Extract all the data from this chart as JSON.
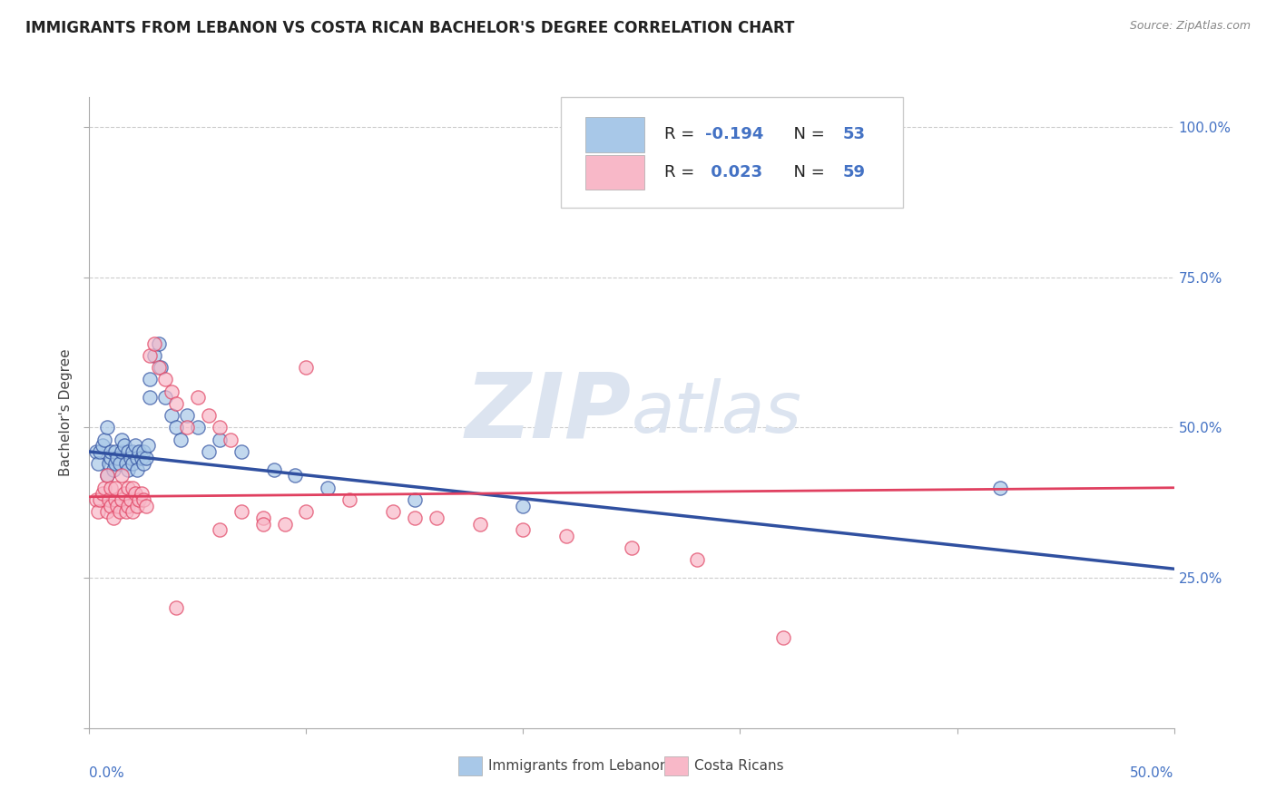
{
  "title": "IMMIGRANTS FROM LEBANON VS COSTA RICAN BACHELOR'S DEGREE CORRELATION CHART",
  "source": "Source: ZipAtlas.com",
  "ylabel": "Bachelor's Degree",
  "right_yticks": [
    "100.0%",
    "75.0%",
    "50.0%",
    "25.0%"
  ],
  "right_ytick_vals": [
    1.0,
    0.75,
    0.5,
    0.25
  ],
  "legend_label1_r": "R = -0.194",
  "legend_label1_n": "N = 53",
  "legend_label2_r": "R =  0.023",
  "legend_label2_n": "N = 59",
  "legend_box_color1": "#a8c8e8",
  "legend_box_color2": "#f8b8c8",
  "color_blue": "#a8c8e8",
  "color_pink": "#f8b8c8",
  "line_color_blue": "#3050a0",
  "line_color_pink": "#e04060",
  "watermark_zip": "ZIP",
  "watermark_atlas": "atlas",
  "watermark_color": "#dce4f0",
  "xlim": [
    0.0,
    0.5
  ],
  "ylim": [
    0.0,
    1.05
  ],
  "blue_scatter_x": [
    0.003,
    0.004,
    0.005,
    0.006,
    0.007,
    0.008,
    0.008,
    0.009,
    0.01,
    0.01,
    0.011,
    0.012,
    0.012,
    0.013,
    0.014,
    0.015,
    0.015,
    0.016,
    0.017,
    0.018,
    0.018,
    0.019,
    0.02,
    0.02,
    0.021,
    0.022,
    0.022,
    0.023,
    0.024,
    0.025,
    0.025,
    0.026,
    0.027,
    0.028,
    0.028,
    0.03,
    0.032,
    0.033,
    0.035,
    0.038,
    0.04,
    0.042,
    0.045,
    0.05,
    0.055,
    0.06,
    0.07,
    0.085,
    0.095,
    0.11,
    0.15,
    0.2,
    0.42
  ],
  "blue_scatter_y": [
    0.46,
    0.44,
    0.46,
    0.47,
    0.48,
    0.42,
    0.5,
    0.44,
    0.45,
    0.46,
    0.43,
    0.44,
    0.46,
    0.45,
    0.44,
    0.46,
    0.48,
    0.47,
    0.44,
    0.43,
    0.46,
    0.45,
    0.44,
    0.46,
    0.47,
    0.45,
    0.43,
    0.46,
    0.45,
    0.44,
    0.46,
    0.45,
    0.47,
    0.55,
    0.58,
    0.62,
    0.64,
    0.6,
    0.55,
    0.52,
    0.5,
    0.48,
    0.52,
    0.5,
    0.46,
    0.48,
    0.46,
    0.43,
    0.42,
    0.4,
    0.38,
    0.37,
    0.4
  ],
  "pink_scatter_x": [
    0.003,
    0.004,
    0.005,
    0.006,
    0.007,
    0.008,
    0.008,
    0.009,
    0.01,
    0.01,
    0.011,
    0.012,
    0.012,
    0.013,
    0.014,
    0.015,
    0.015,
    0.016,
    0.017,
    0.018,
    0.018,
    0.019,
    0.02,
    0.02,
    0.021,
    0.022,
    0.023,
    0.024,
    0.025,
    0.026,
    0.028,
    0.03,
    0.032,
    0.035,
    0.038,
    0.04,
    0.045,
    0.05,
    0.055,
    0.06,
    0.065,
    0.07,
    0.08,
    0.09,
    0.1,
    0.12,
    0.14,
    0.16,
    0.18,
    0.2,
    0.22,
    0.25,
    0.28,
    0.32,
    0.1,
    0.15,
    0.08,
    0.06,
    0.04
  ],
  "pink_scatter_y": [
    0.38,
    0.36,
    0.38,
    0.39,
    0.4,
    0.36,
    0.42,
    0.38,
    0.37,
    0.4,
    0.35,
    0.38,
    0.4,
    0.37,
    0.36,
    0.38,
    0.42,
    0.39,
    0.36,
    0.37,
    0.4,
    0.38,
    0.36,
    0.4,
    0.39,
    0.37,
    0.38,
    0.39,
    0.38,
    0.37,
    0.62,
    0.64,
    0.6,
    0.58,
    0.56,
    0.54,
    0.5,
    0.55,
    0.52,
    0.5,
    0.48,
    0.36,
    0.35,
    0.34,
    0.6,
    0.38,
    0.36,
    0.35,
    0.34,
    0.33,
    0.32,
    0.3,
    0.28,
    0.15,
    0.36,
    0.35,
    0.34,
    0.33,
    0.2
  ],
  "blue_line_x0": 0.0,
  "blue_line_x1": 0.5,
  "blue_line_y0": 0.46,
  "blue_line_y1": 0.265,
  "pink_line_x0": 0.0,
  "pink_line_x1": 0.5,
  "pink_line_y0": 0.385,
  "pink_line_y1": 0.4
}
